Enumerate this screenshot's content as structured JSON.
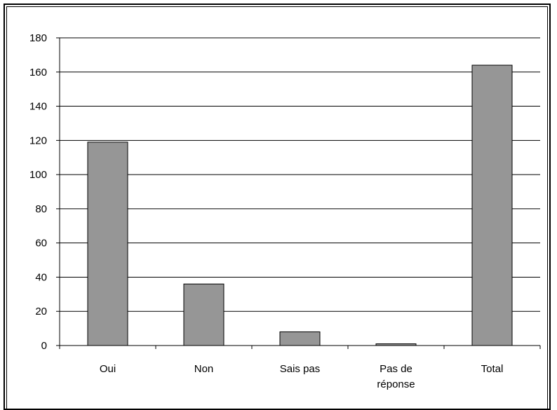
{
  "chart_data": {
    "type": "bar",
    "title": "",
    "xlabel": "",
    "ylabel": "",
    "categories": [
      [
        "Oui"
      ],
      [
        "Non"
      ],
      [
        "Sais pas"
      ],
      [
        "Pas de",
        "réponse"
      ],
      [
        "Total"
      ]
    ],
    "values": [
      119,
      36,
      8,
      1,
      164
    ],
    "ylim": [
      0,
      180
    ],
    "yticks": [
      "0",
      "20",
      "40",
      "60",
      "80",
      "100",
      "120",
      "140",
      "160",
      "180"
    ],
    "grid": true,
    "bar_color": "#969696",
    "bar_edge_color": "#000000",
    "background": "#ffffff"
  }
}
